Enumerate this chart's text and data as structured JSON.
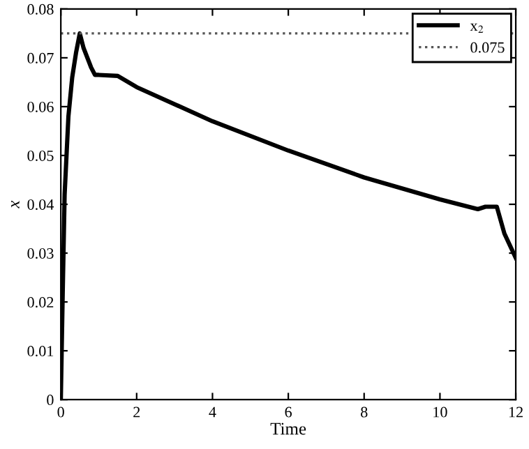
{
  "chart_data": {
    "type": "line",
    "xlabel": "Time",
    "ylabel": "x",
    "series": [
      {
        "name": "x$_{2}$",
        "color": "#000000",
        "line_style": "solid",
        "x": [
          0,
          0.05,
          0.1,
          0.2,
          0.3,
          0.4,
          0.5,
          0.6,
          0.7,
          0.8,
          0.9,
          1.0,
          1.5,
          2,
          4,
          6,
          8,
          10,
          11,
          11.2,
          11.5,
          11.7,
          12
        ],
        "values": [
          0,
          0.022,
          0.042,
          0.058,
          0.066,
          0.071,
          0.075,
          0.072,
          0.07,
          0.068,
          0.0665,
          0.0665,
          0.0663,
          0.064,
          0.057,
          0.051,
          0.0455,
          0.041,
          0.039,
          0.0395,
          0.0395,
          0.034,
          0.029
        ]
      },
      {
        "name": "0.075",
        "color": "#555555",
        "line_style": "dotted",
        "x": [
          0,
          12
        ],
        "values": [
          0.075,
          0.075
        ]
      }
    ],
    "xlim": [
      0,
      12
    ],
    "xticks": [
      0,
      2,
      4,
      6,
      8,
      10,
      12
    ],
    "ylim": [
      0,
      0.08
    ],
    "yticks": [
      0,
      0.01,
      0.02,
      0.03,
      0.04,
      0.05,
      0.06,
      0.07,
      0.08
    ],
    "legend": "top right",
    "grid": false
  }
}
